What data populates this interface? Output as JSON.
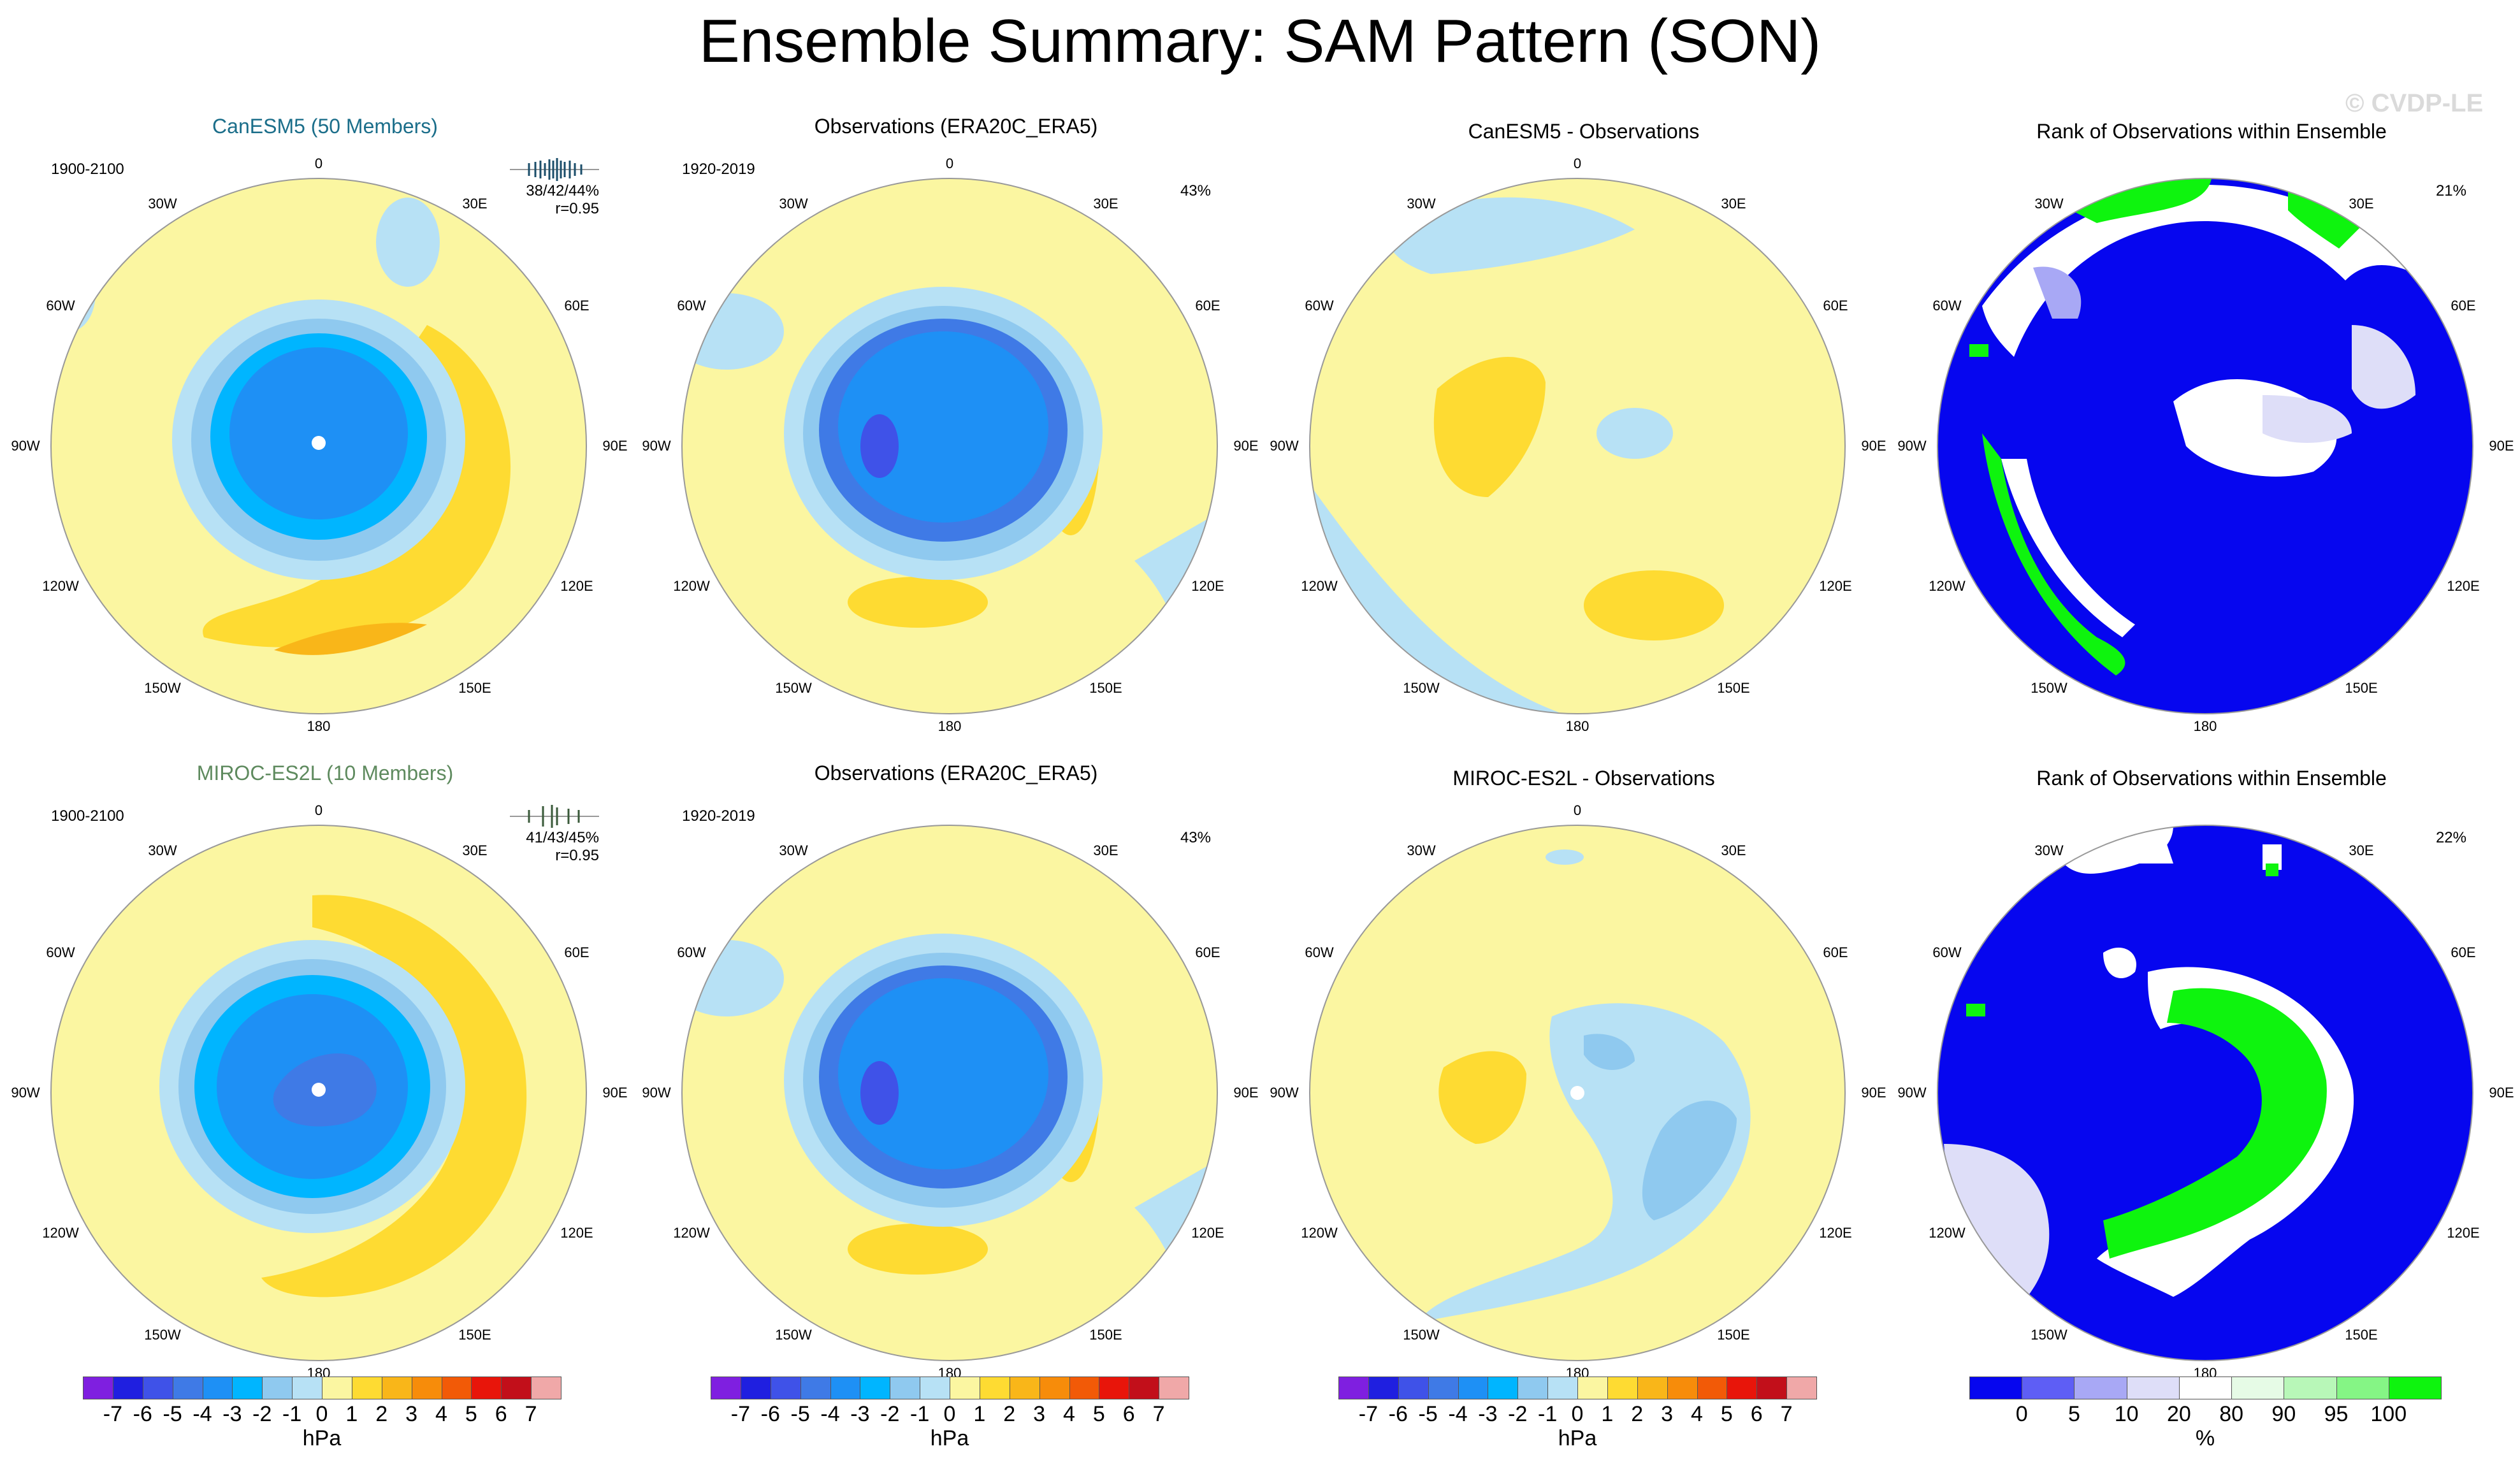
{
  "figure": {
    "title": "Ensemble Summary: SAM Pattern (SON)",
    "watermark": "© CVDP-LE"
  },
  "lon_labels": [
    "0",
    "30E",
    "60E",
    "90E",
    "120E",
    "150E",
    "180",
    "150W",
    "120W",
    "90W",
    "60W",
    "30W"
  ],
  "colors": {
    "hpa": [
      "#7f1fe0",
      "#1f1fe0",
      "#3f52e8",
      "#3f7ae6",
      "#1e90f5",
      "#00b5ff",
      "#8fc9ef",
      "#b7e1f5",
      "#fbf6a1",
      "#fedb32",
      "#f9b619",
      "#f78c0a",
      "#f25a07",
      "#e8150a",
      "#c20f1a",
      "#f0a8a8"
    ],
    "rank": [
      "#0606ef",
      "#5e5ef5",
      "#a8a8f5",
      "#dedef8",
      "#ffffff",
      "#e6fbe6",
      "#b8f7b8",
      "#85f585",
      "#0ef40e"
    ]
  },
  "panels": [
    {
      "id": "r1c1",
      "title": "CanESM5 (50 Members)",
      "period": "1900-2100",
      "stats_line1": "38/42/44%",
      "stats_line2": "r=0.95",
      "style": "model-canesm"
    },
    {
      "id": "r1c2",
      "title": "Observations (ERA20C_ERA5)",
      "period": "1920-2019",
      "percent": "43%",
      "style": "obs"
    },
    {
      "id": "r1c3",
      "title": "CanESM5 - Observations",
      "style": "diff1"
    },
    {
      "id": "r1c4",
      "title": "Rank of Observations within Ensemble",
      "percent": "21%",
      "style": "rank1"
    },
    {
      "id": "r2c1",
      "title": "MIROC-ES2L (10 Members)",
      "period": "1900-2100",
      "stats_line1": "41/43/45%",
      "stats_line2": "r=0.95",
      "style": "model-miroc"
    },
    {
      "id": "r2c2",
      "title": "Observations (ERA20C_ERA5)",
      "period": "1920-2019",
      "percent": "43%",
      "style": "obs"
    },
    {
      "id": "r2c3",
      "title": "MIROC-ES2L - Observations",
      "style": "diff2"
    },
    {
      "id": "r2c4",
      "title": "Rank of Observations within Ensemble",
      "percent": "22%",
      "style": "rank2"
    }
  ],
  "colorbars": {
    "hpa": {
      "labels": [
        "-7",
        "-6",
        "-5",
        "-4",
        "-3",
        "-2",
        "-1",
        "0",
        "1",
        "2",
        "3",
        "4",
        "5",
        "6",
        "7"
      ],
      "unit": "hPa"
    },
    "rank": {
      "labels": [
        "0",
        "5",
        "10",
        "20",
        "80",
        "90",
        "95",
        "100"
      ],
      "unit": "%"
    }
  }
}
